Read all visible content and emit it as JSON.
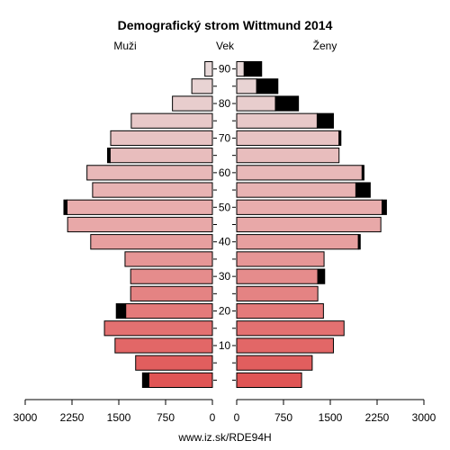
{
  "chart_data": {
    "type": "bar",
    "subtype": "population-pyramid",
    "title": "Demografický strom Wittmund 2014",
    "left_label": "Muži",
    "center_label": "Vek",
    "right_label": "Ženy",
    "footer": "www.iz.sk/RDE94H",
    "xlim": [
      0,
      3000
    ],
    "x_ticks": [
      0,
      750,
      1500,
      2250,
      3000
    ],
    "x_tick_labels": [
      "0",
      "750",
      "1500",
      "2250",
      "3000"
    ],
    "age_tick_labels": [
      "10",
      "20",
      "30",
      "40",
      "50",
      "60",
      "70",
      "80",
      "90"
    ],
    "age_groups": [
      "0-4",
      "5-9",
      "10-14",
      "15-19",
      "20-24",
      "25-29",
      "30-34",
      "35-39",
      "40-44",
      "45-49",
      "50-54",
      "55-59",
      "60-64",
      "65-69",
      "70-74",
      "75-79",
      "80-84",
      "85-89",
      "90+"
    ],
    "series": [
      {
        "name": "Muži",
        "side": "left",
        "values": [
          1020,
          1230,
          1560,
          1730,
          1390,
          1310,
          1310,
          1400,
          1950,
          2320,
          2330,
          1920,
          2010,
          1640,
          1630,
          1300,
          640,
          330,
          120
        ],
        "excess": [
          100,
          0,
          0,
          0,
          150,
          0,
          0,
          0,
          0,
          0,
          50,
          0,
          0,
          40,
          0,
          0,
          0,
          0,
          0
        ]
      },
      {
        "name": "Ženy",
        "side": "right",
        "values": [
          1040,
          1210,
          1550,
          1720,
          1390,
          1300,
          1300,
          1400,
          1950,
          2310,
          2330,
          1910,
          2010,
          1640,
          1640,
          1290,
          620,
          320,
          120
        ],
        "excess": [
          0,
          0,
          0,
          0,
          0,
          0,
          110,
          0,
          30,
          0,
          70,
          230,
          30,
          0,
          30,
          260,
          370,
          340,
          280
        ]
      }
    ],
    "colors": {
      "young": "#e05555",
      "middle": "#e8a8a8",
      "old": "#e8d8d8",
      "excess": "#000000"
    }
  }
}
